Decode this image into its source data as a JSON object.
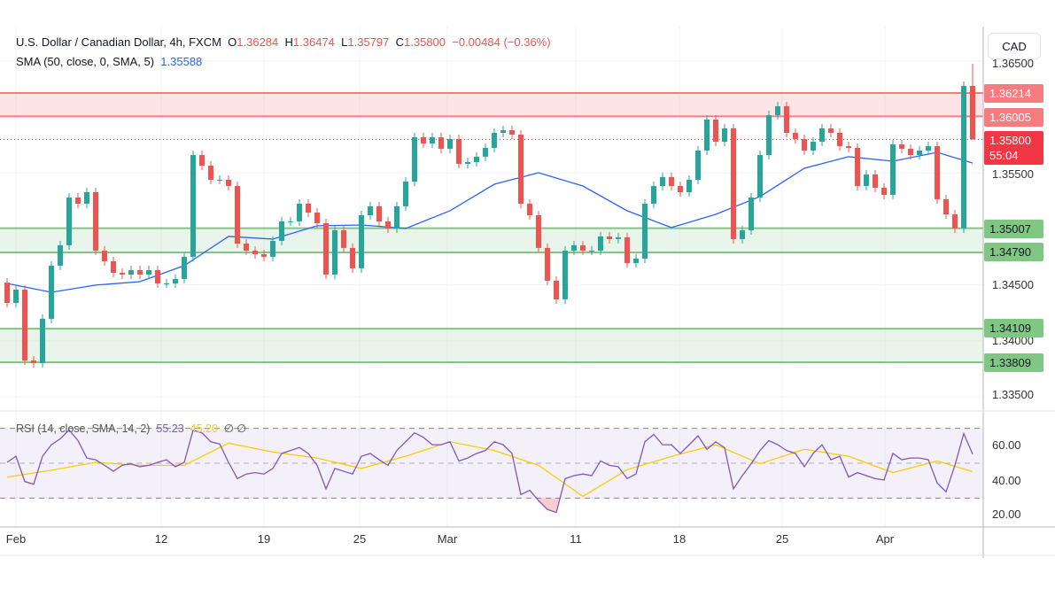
{
  "header": {
    "symbol": "U.S. Dollar / Canadian Dollar, 4h, FXCM",
    "o_label": "O",
    "o": "1.36284",
    "h_label": "H",
    "h": "1.36474",
    "l_label": "L",
    "l": "1.35797",
    "c_label": "C",
    "c": "1.35800",
    "change": "−0.00484 (−0.36%)"
  },
  "sma_legend": {
    "label": "SMA (50, close, 0, SMA, 5)",
    "value": "1.35588"
  },
  "rsi_legend": {
    "label": "RSI (14, close, SMA, 14, 2)",
    "rsi_value": "55.23",
    "sma_value": "45.20",
    "extra": "∅ ∅"
  },
  "currency_button": "CAD",
  "price_axis": [
    "1.36500",
    "1.35500",
    "1.34500",
    "1.34000",
    "1.33500"
  ],
  "rsi_axis": [
    "60.00",
    "40.00",
    "20.00"
  ],
  "time_axis": [
    "Feb",
    "12",
    "19",
    "25",
    "Mar",
    "11",
    "18",
    "25",
    "Apr"
  ],
  "price_tags": {
    "resistance_top": "1.36214",
    "resistance_bottom": "1.36005",
    "current_price": "1.35800",
    "countdown": "55:04",
    "support1_top": "1.35007",
    "support1_bottom": "1.34790",
    "support2_top": "1.34109",
    "support2_bottom": "1.33809"
  },
  "colors": {
    "up": "#26a69a",
    "down": "#ef5350",
    "sma": "#2962ff",
    "rsi": "#7e57c2",
    "rsi_sma": "#f5d000",
    "resistance": "#f77c80",
    "support": "#81c784"
  },
  "chart_data": {
    "type": "candlestick",
    "timeframe": "4h",
    "x_range": [
      "Feb",
      "Apr"
    ],
    "ylim": [
      1.332,
      1.366
    ],
    "grid": true,
    "zones": [
      {
        "type": "resistance",
        "from": 1.36005,
        "to": 1.36214
      },
      {
        "type": "support",
        "from": 1.3479,
        "to": 1.35007
      },
      {
        "type": "support",
        "from": 1.33809,
        "to": 1.34109
      }
    ],
    "current_price": 1.358,
    "first_open": 1.3452,
    "last_high": 1.36474,
    "last_low": 1.35797,
    "closes": [
      1.34339,
      1.34458,
      1.33825,
      1.33801,
      1.34197,
      1.34672,
      1.34854,
      1.35281,
      1.35225,
      1.35328,
      1.34806,
      1.34711,
      1.34608,
      1.34592,
      1.34632,
      1.34592,
      1.34632,
      1.34513,
      1.34513,
      1.34553,
      1.34751,
      1.3566,
      1.35565,
      1.35439,
      1.35439,
      1.35383,
      1.34869,
      1.34806,
      1.34774,
      1.34751,
      1.34893,
      1.35067,
      1.35067,
      1.35225,
      1.35146,
      1.35051,
      1.34592,
      1.34988,
      1.3483,
      1.34648,
      1.35122,
      1.35202,
      1.35067,
      1.35004,
      1.35202,
      1.35423,
      1.35819,
      1.35763,
      1.35819,
      1.35716,
      1.35803,
      1.35581,
      1.35597,
      1.35645,
      1.35724,
      1.35858,
      1.35882,
      1.35842,
      1.35225,
      1.35122,
      1.3483,
      1.34537,
      1.34371,
      1.34806,
      1.34854,
      1.34806,
      1.34806,
      1.34933,
      1.34909,
      1.34925,
      1.34695,
      1.34735,
      1.35225,
      1.35383,
      1.35463,
      1.35383,
      1.35328,
      1.35439,
      1.357,
      1.35977,
      1.35779,
      1.35898,
      1.34909,
      1.34988,
      1.35281,
      1.3566,
      1.36016,
      1.36095,
      1.35858,
      1.35803,
      1.357,
      1.35779,
      1.35898,
      1.35858,
      1.35739,
      1.35724,
      1.35383,
      1.35486,
      1.35368,
      1.35304,
      1.35755,
      1.35716,
      1.3566,
      1.357,
      1.35739,
      1.35265,
      1.3513,
      1.35004,
      1.36277,
      1.358
    ],
    "sma_every_5": [
      1.34513,
      1.34434,
      1.34498,
      1.34529,
      1.34672,
      1.34933,
      1.34909,
      1.35028,
      1.35035,
      1.35004,
      1.35162,
      1.35399,
      1.35502,
      1.35383,
      1.35162,
      1.35012,
      1.3513,
      1.35289,
      1.35542,
      1.35645,
      1.35605,
      1.35684,
      1.35588
    ],
    "rsi": {
      "ylim": [
        15,
        80
      ],
      "bands": [
        30,
        50,
        70
      ],
      "values": [
        50.5,
        54,
        39.5,
        38,
        54,
        60.6,
        64,
        69,
        63,
        53,
        52,
        48.8,
        45.4,
        48.8,
        49.7,
        48,
        48.8,
        50.5,
        52,
        48,
        50.5,
        69,
        67.4,
        62.3,
        61,
        50.5,
        41.2,
        43.8,
        44.6,
        43.8,
        47,
        55.6,
        57.3,
        59,
        55.6,
        48.8,
        35.3,
        47,
        45.4,
        43.8,
        54,
        55.6,
        52,
        48.8,
        57.3,
        62.3,
        67.4,
        64.8,
        60.6,
        60.6,
        62.3,
        51.3,
        53,
        55.6,
        57.3,
        62.3,
        60.6,
        55.6,
        32,
        34.5,
        28.6,
        23.5,
        21.8,
        41.2,
        42.9,
        43.8,
        42.9,
        51.3,
        48.8,
        48,
        41.2,
        43.8,
        62.3,
        66.5,
        60.6,
        60.6,
        55.6,
        60.6,
        65.7,
        58,
        62.3,
        58.9,
        35.3,
        42.9,
        49.7,
        57.3,
        63,
        60.6,
        57.3,
        55.6,
        48,
        55.6,
        60.6,
        52,
        54,
        42,
        44.6,
        42.9,
        41.2,
        40.4,
        55.6,
        52,
        53,
        53,
        52,
        38.7,
        33.6,
        48.8,
        67,
        55.23
      ],
      "sma_every_5": [
        42,
        46,
        50.5,
        48.8,
        48.8,
        61.5,
        56.4,
        53,
        47,
        54,
        62.3,
        57.3,
        48.8,
        31,
        46.3,
        53.9,
        60.6,
        49.7,
        58,
        54,
        44.6,
        51.3,
        45.2
      ]
    }
  }
}
